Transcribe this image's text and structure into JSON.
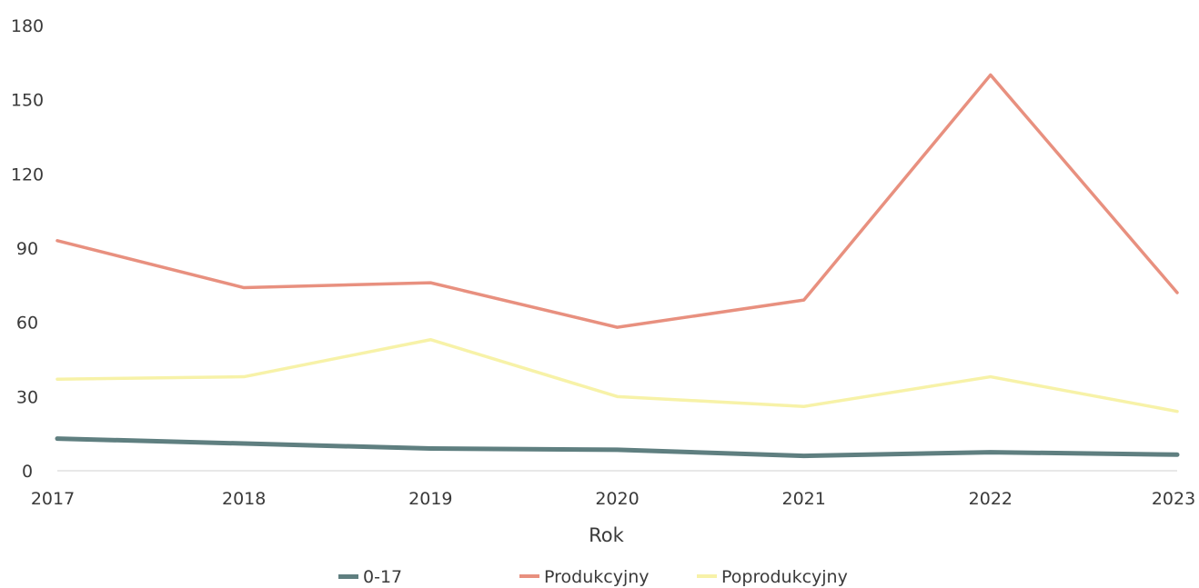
{
  "chart_data": {
    "type": "line",
    "x": [
      "2017",
      "2018",
      "2019",
      "2020",
      "2021",
      "2022",
      "2023"
    ],
    "xlabel": "Rok",
    "ylabel": "",
    "ylim": [
      0,
      180
    ],
    "yticks": [
      0,
      30,
      60,
      90,
      120,
      150,
      180
    ],
    "grid": false,
    "legend": "bottom",
    "series": [
      {
        "name": "0-17",
        "color": "#5f7f80",
        "values": [
          13,
          11,
          9,
          8.5,
          6,
          7.5,
          6.5
        ]
      },
      {
        "name": "Produkcyjny",
        "color": "#e8907f",
        "values": [
          93,
          74,
          76,
          58,
          69,
          160,
          72
        ]
      },
      {
        "name": "Poprodukcyjny",
        "color": "#f7f2a8",
        "values": [
          37,
          38,
          53,
          30,
          26,
          38,
          24
        ]
      }
    ]
  }
}
